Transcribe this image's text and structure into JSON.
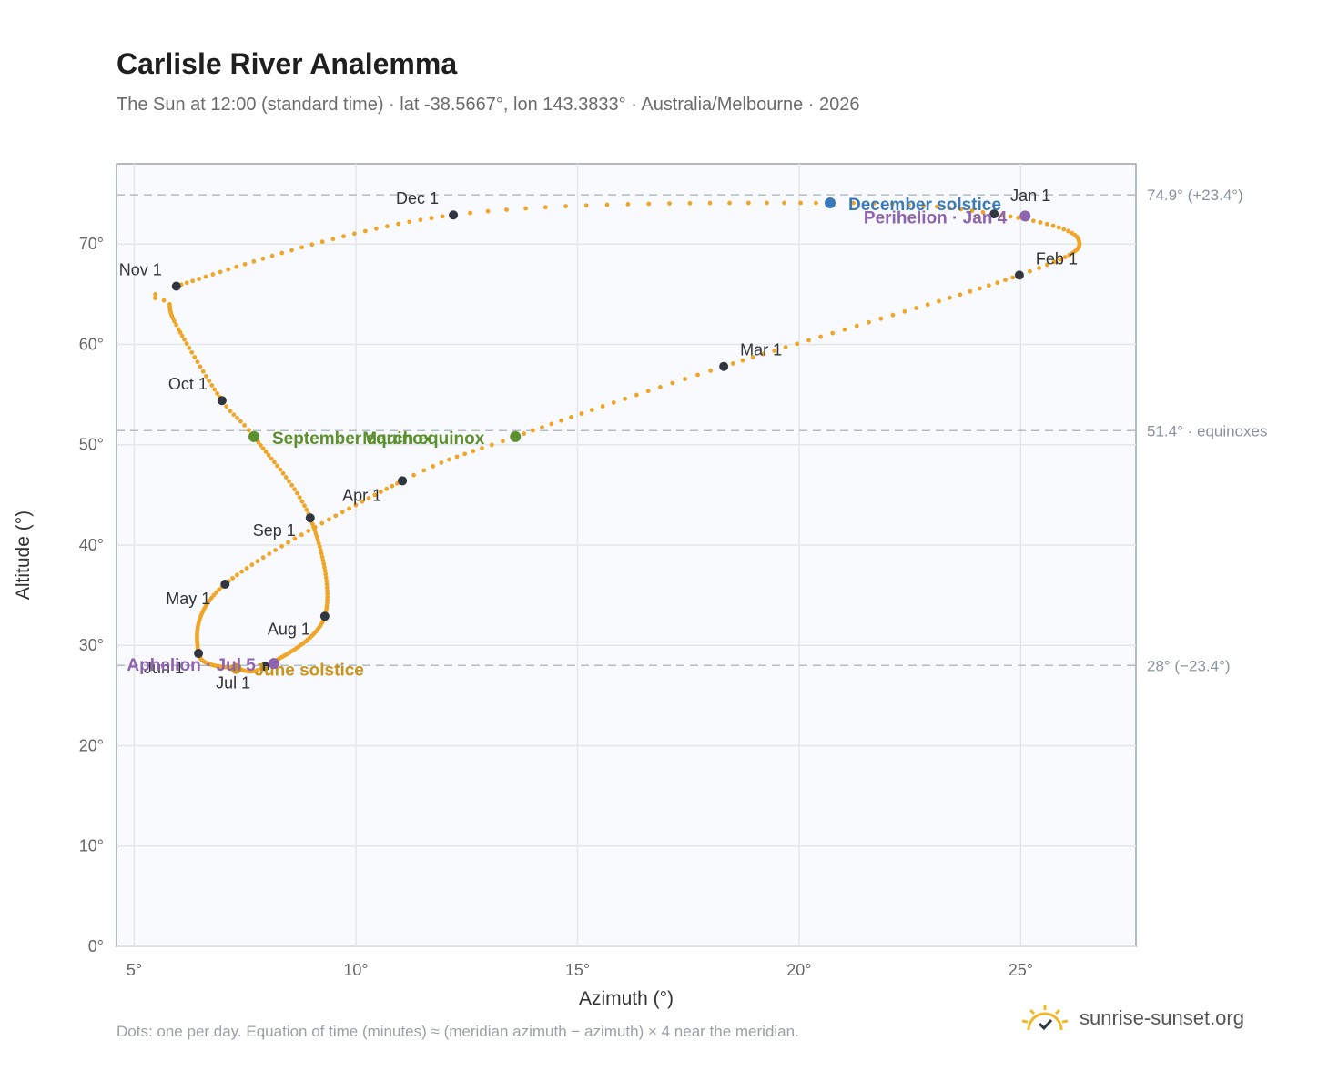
{
  "header": {
    "title": "Carlisle River Analemma",
    "subtitle": "The Sun at 12:00 (standard time) · lat -38.5667°, lon 143.3833° · Australia/Melbourne · 2026"
  },
  "footer": {
    "note": "Dots: one per day. Equation of time (minutes) ≈ (meridian azimuth − azimuth) × 4 near the meridian.",
    "brand": "sunrise-sunset.org",
    "brand_icon": "sun-logo-icon"
  },
  "colors": {
    "path": "#f0a526",
    "month_marker": "#2f3640",
    "equinox": "#5c8f2e",
    "december_solstice": "#3a79b8",
    "june_solstice": "#c99419",
    "apsis": "#8e63b0",
    "reference_line": "#b4bcc4",
    "plot_background": "#f8fafd"
  },
  "chart_data": {
    "type": "scatter",
    "xlabel": "Azimuth (°)",
    "ylabel": "Altitude (°)",
    "xlim": [
      4.6,
      27.6
    ],
    "ylim": [
      0,
      78
    ],
    "x_ticks": [
      5,
      10,
      15,
      20,
      25
    ],
    "x_tick_labels": [
      "5°",
      "10°",
      "15°",
      "20°",
      "25°"
    ],
    "y_ticks": [
      0,
      10,
      20,
      30,
      40,
      50,
      60,
      70
    ],
    "y_tick_labels": [
      "0°",
      "10°",
      "20°",
      "30°",
      "40°",
      "50°",
      "60°",
      "70°"
    ],
    "grid": true,
    "reference_lines": [
      {
        "y": 74.9,
        "label": "74.9° (+23.4°)"
      },
      {
        "y": 51.4,
        "label": "51.4° · equinoxes"
      },
      {
        "y": 28.0,
        "label": "28° (−23.4°)"
      }
    ],
    "path_keypoints": [
      {
        "day": 0,
        "x": 24.4,
        "y": 73.0
      },
      {
        "day": 31,
        "x": 24.97,
        "y": 66.9
      },
      {
        "day": 59,
        "x": 18.3,
        "y": 57.8
      },
      {
        "day": 78,
        "x": 13.6,
        "y": 50.8
      },
      {
        "day": 90,
        "x": 11.05,
        "y": 46.4
      },
      {
        "day": 120,
        "x": 7.05,
        "y": 36.1
      },
      {
        "day": 151,
        "x": 6.45,
        "y": 29.2
      },
      {
        "day": 171,
        "x": 7.3,
        "y": 27.7
      },
      {
        "day": 181,
        "x": 7.95,
        "y": 27.9
      },
      {
        "day": 212,
        "x": 9.3,
        "y": 32.9
      },
      {
        "day": 243,
        "x": 8.97,
        "y": 42.7
      },
      {
        "day": 265,
        "x": 7.7,
        "y": 50.8
      },
      {
        "day": 273,
        "x": 6.98,
        "y": 54.4
      },
      {
        "day": 304,
        "x": 5.95,
        "y": 65.8
      },
      {
        "day": 334,
        "x": 12.2,
        "y": 72.9
      },
      {
        "day": 354,
        "x": 20.7,
        "y": 74.1
      },
      {
        "day": 365,
        "x": 24.4,
        "y": 73.0
      }
    ],
    "path_keypoints_extra": [
      {
        "day": 15,
        "x": 26.3,
        "y": 70.5
      },
      {
        "day": 290,
        "x": 6.0,
        "y": 61.5
      },
      {
        "day": 300,
        "x": 5.8,
        "y": 64.0
      }
    ],
    "month_markers": [
      {
        "label": "Jan 1",
        "x": 24.4,
        "y": 73.0
      },
      {
        "label": "Feb 1",
        "x": 24.97,
        "y": 66.9
      },
      {
        "label": "Mar 1",
        "x": 18.3,
        "y": 57.8
      },
      {
        "label": "Apr 1",
        "x": 11.05,
        "y": 46.4
      },
      {
        "label": "May 1",
        "x": 7.05,
        "y": 36.1
      },
      {
        "label": "Jun 1",
        "x": 6.45,
        "y": 29.2
      },
      {
        "label": "Jul 1",
        "x": 7.95,
        "y": 27.9
      },
      {
        "label": "Aug 1",
        "x": 9.3,
        "y": 32.9
      },
      {
        "label": "Sep 1",
        "x": 8.97,
        "y": 42.7
      },
      {
        "label": "Oct 1",
        "x": 6.98,
        "y": 54.4
      },
      {
        "label": "Nov 1",
        "x": 5.95,
        "y": 65.8
      },
      {
        "label": "Dec 1",
        "x": 12.2,
        "y": 72.9
      }
    ],
    "events": [
      {
        "label": "March equinox",
        "x": 13.6,
        "y": 50.8,
        "kind": "equinox"
      },
      {
        "label": "September equinox",
        "x": 7.7,
        "y": 50.8,
        "kind": "equinox"
      },
      {
        "label": "December solstice",
        "x": 20.7,
        "y": 74.1,
        "kind": "december_solstice"
      },
      {
        "label": "June solstice",
        "x": 7.3,
        "y": 27.7,
        "kind": "june_solstice"
      },
      {
        "label": "Perihelion · Jan 4",
        "x": 25.1,
        "y": 72.8,
        "kind": "apsis"
      },
      {
        "label": "Aphelion · Jul 5",
        "x": 8.15,
        "y": 28.2,
        "kind": "apsis"
      }
    ]
  }
}
